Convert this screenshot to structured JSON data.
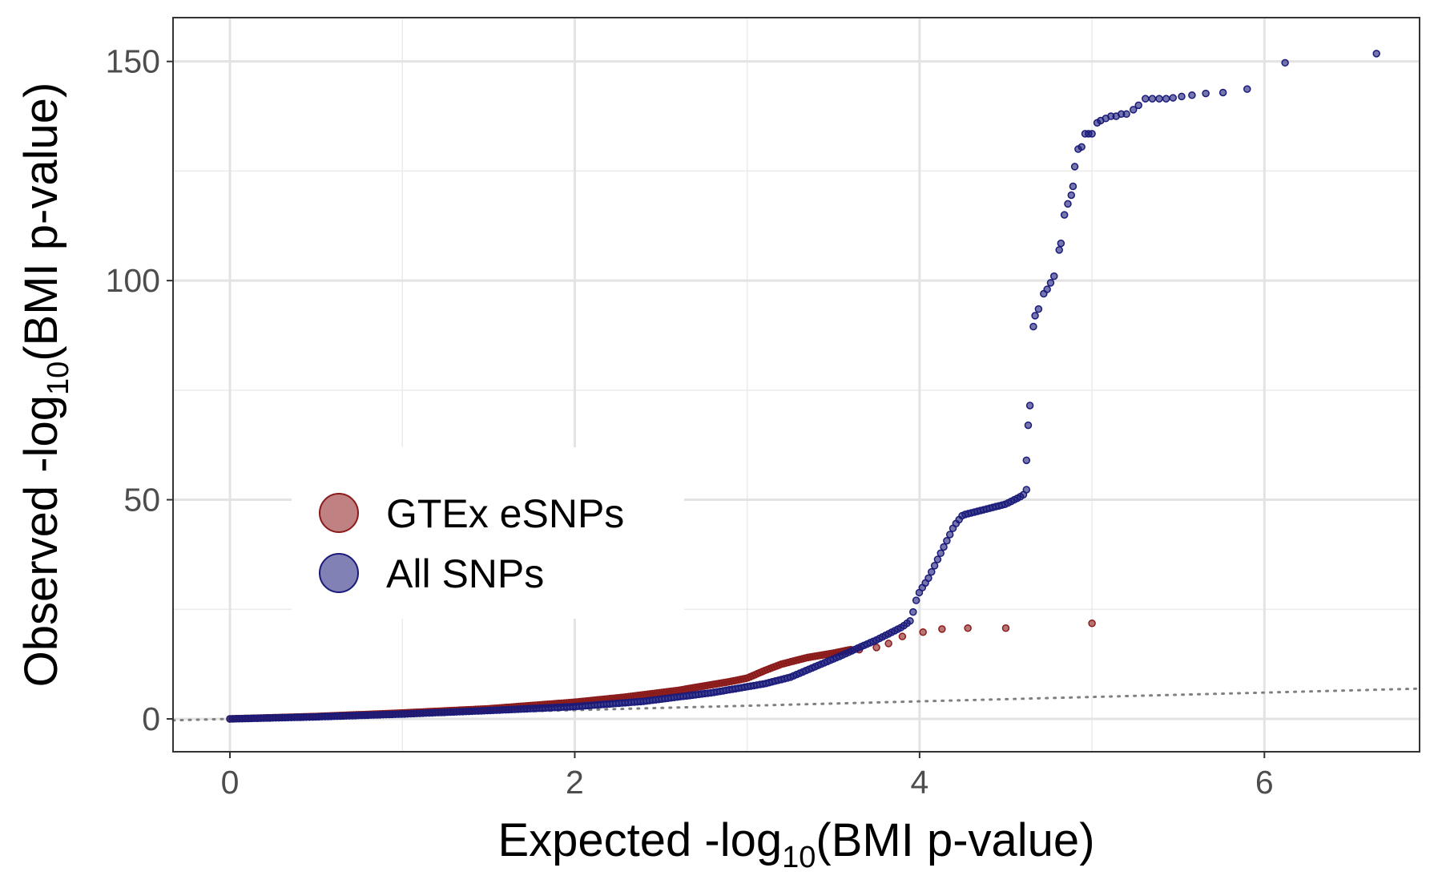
{
  "chart_data": {
    "type": "scatter",
    "xlabel": {
      "pre": "Expected -log",
      "sub": "10",
      "post": "(BMI p-value)"
    },
    "ylabel": {
      "pre": "Observed -log",
      "sub": "10",
      "post": "(BMI p-value)"
    },
    "xlim": [
      -0.33,
      6.9
    ],
    "ylim": [
      -7.5,
      160
    ],
    "x_ticks": [
      0,
      2,
      4,
      6
    ],
    "x_tick_labels": [
      "0",
      "2",
      "4",
      "6"
    ],
    "x_minor_gridlines": [
      1,
      3,
      5
    ],
    "y_ticks": [
      0,
      50,
      100,
      150
    ],
    "y_tick_labels": [
      "0",
      "50",
      "100",
      "150"
    ],
    "y_minor_gridlines": [
      25,
      75,
      125
    ],
    "grid": true,
    "reference_line": {
      "style": "dotted",
      "color": "#808080",
      "description": "y = x"
    },
    "legend": {
      "placement": "center-left"
    },
    "series": [
      {
        "name": "GTEx eSNPs",
        "color": "#8B1A1A",
        "dense_curve": [
          [
            0,
            0
          ],
          [
            0.5,
            0.55
          ],
          [
            1,
            1.35
          ],
          [
            1.5,
            2.3
          ],
          [
            2,
            3.8
          ],
          [
            2.3,
            5
          ],
          [
            2.6,
            6.5
          ],
          [
            2.9,
            8.5
          ],
          [
            3.0,
            9.3
          ],
          [
            3.1,
            11
          ],
          [
            3.2,
            12.5
          ],
          [
            3.35,
            14
          ],
          [
            3.5,
            15
          ],
          [
            3.6,
            15.8
          ]
        ],
        "points": [
          [
            3.65,
            15.8
          ],
          [
            3.75,
            16.3
          ],
          [
            3.82,
            17.2
          ],
          [
            3.9,
            18.8
          ],
          [
            4.02,
            19.8
          ],
          [
            4.13,
            20.5
          ],
          [
            4.28,
            20.7
          ],
          [
            4.5,
            20.7
          ],
          [
            5.0,
            21.8
          ]
        ]
      },
      {
        "name": "All SNPs",
        "color": "#1A1A7A",
        "dense_curve": [
          [
            0,
            0
          ],
          [
            0.5,
            0.45
          ],
          [
            1,
            1.1
          ],
          [
            1.5,
            1.9
          ],
          [
            2,
            2.8
          ],
          [
            2.4,
            4
          ],
          [
            2.8,
            6
          ],
          [
            3.1,
            8
          ],
          [
            3.25,
            9.5
          ],
          [
            3.4,
            12
          ],
          [
            3.55,
            14.5
          ],
          [
            3.65,
            16.3
          ],
          [
            3.75,
            18
          ],
          [
            3.85,
            20
          ],
          [
            3.9,
            21
          ],
          [
            3.95,
            22.5
          ],
          [
            3.98,
            27
          ],
          [
            4.0,
            29
          ],
          [
            4.05,
            32
          ],
          [
            4.1,
            36
          ],
          [
            4.15,
            40
          ],
          [
            4.2,
            44
          ],
          [
            4.25,
            46.5
          ],
          [
            4.3,
            47
          ],
          [
            4.4,
            48
          ],
          [
            4.5,
            49
          ],
          [
            4.6,
            51
          ],
          [
            4.62,
            52.3
          ]
        ],
        "points": [
          [
            4.62,
            59
          ],
          [
            4.63,
            67
          ],
          [
            4.64,
            71.5
          ],
          [
            4.66,
            89.5
          ],
          [
            4.67,
            92
          ],
          [
            4.69,
            93.5
          ],
          [
            4.72,
            97
          ],
          [
            4.74,
            98
          ],
          [
            4.76,
            99.5
          ],
          [
            4.78,
            101
          ],
          [
            4.81,
            107
          ],
          [
            4.82,
            108.5
          ],
          [
            4.84,
            115
          ],
          [
            4.86,
            117.5
          ],
          [
            4.88,
            119.5
          ],
          [
            4.89,
            121.5
          ],
          [
            4.9,
            126
          ],
          [
            4.92,
            130
          ],
          [
            4.94,
            130.5
          ],
          [
            4.96,
            133.5
          ],
          [
            4.98,
            133.5
          ],
          [
            5.0,
            133.5
          ],
          [
            5.03,
            136
          ],
          [
            5.05,
            136.5
          ],
          [
            5.08,
            137
          ],
          [
            5.11,
            137.5
          ],
          [
            5.14,
            137.5
          ],
          [
            5.17,
            138
          ],
          [
            5.2,
            138
          ],
          [
            5.24,
            139
          ],
          [
            5.27,
            140
          ],
          [
            5.31,
            141.5
          ],
          [
            5.35,
            141.5
          ],
          [
            5.39,
            141.5
          ],
          [
            5.43,
            141.5
          ],
          [
            5.47,
            141.7
          ],
          [
            5.52,
            142
          ],
          [
            5.58,
            142.3
          ],
          [
            5.66,
            142.7
          ],
          [
            5.76,
            142.9
          ],
          [
            5.9,
            143.7
          ],
          [
            6.12,
            149.7
          ],
          [
            6.65,
            151.8
          ]
        ]
      }
    ]
  }
}
